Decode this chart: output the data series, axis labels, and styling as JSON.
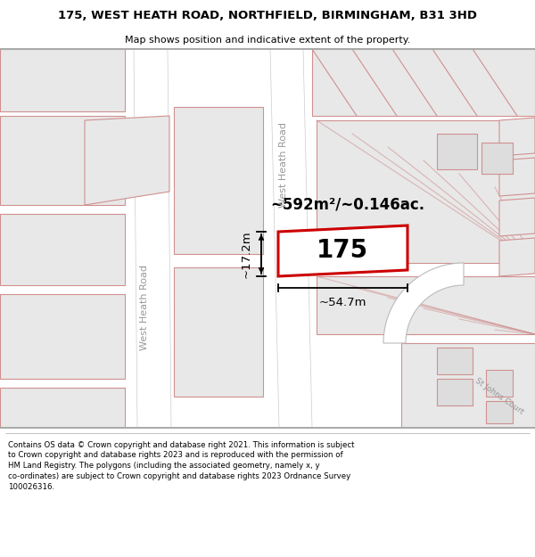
{
  "title": "175, WEST HEATH ROAD, NORTHFIELD, BIRMINGHAM, B31 3HD",
  "subtitle": "Map shows position and indicative extent of the property.",
  "footer": "Contains OS data © Crown copyright and database right 2021. This information is subject\nto Crown copyright and database rights 2023 and is reproduced with the permission of\nHM Land Registry. The polygons (including the associated geometry, namely x, y\nco-ordinates) are subject to Crown copyright and database rights 2023 Ordnance Survey\n100026316.",
  "highlight_color": "#cc0000",
  "parcel_fill": "#e8e8e8",
  "parcel_edge": "#d09090",
  "road_fill": "#ffffff",
  "map_bg": "#f2f2f2",
  "area_text": "~592m²/~0.146ac.",
  "width_text": "~54.7m",
  "height_text": "~17.2m",
  "number_text": "175",
  "street_label_left": "West Heath Road",
  "street_label_mid": "West Heath Road",
  "st_johns_court": "St Johns Court"
}
